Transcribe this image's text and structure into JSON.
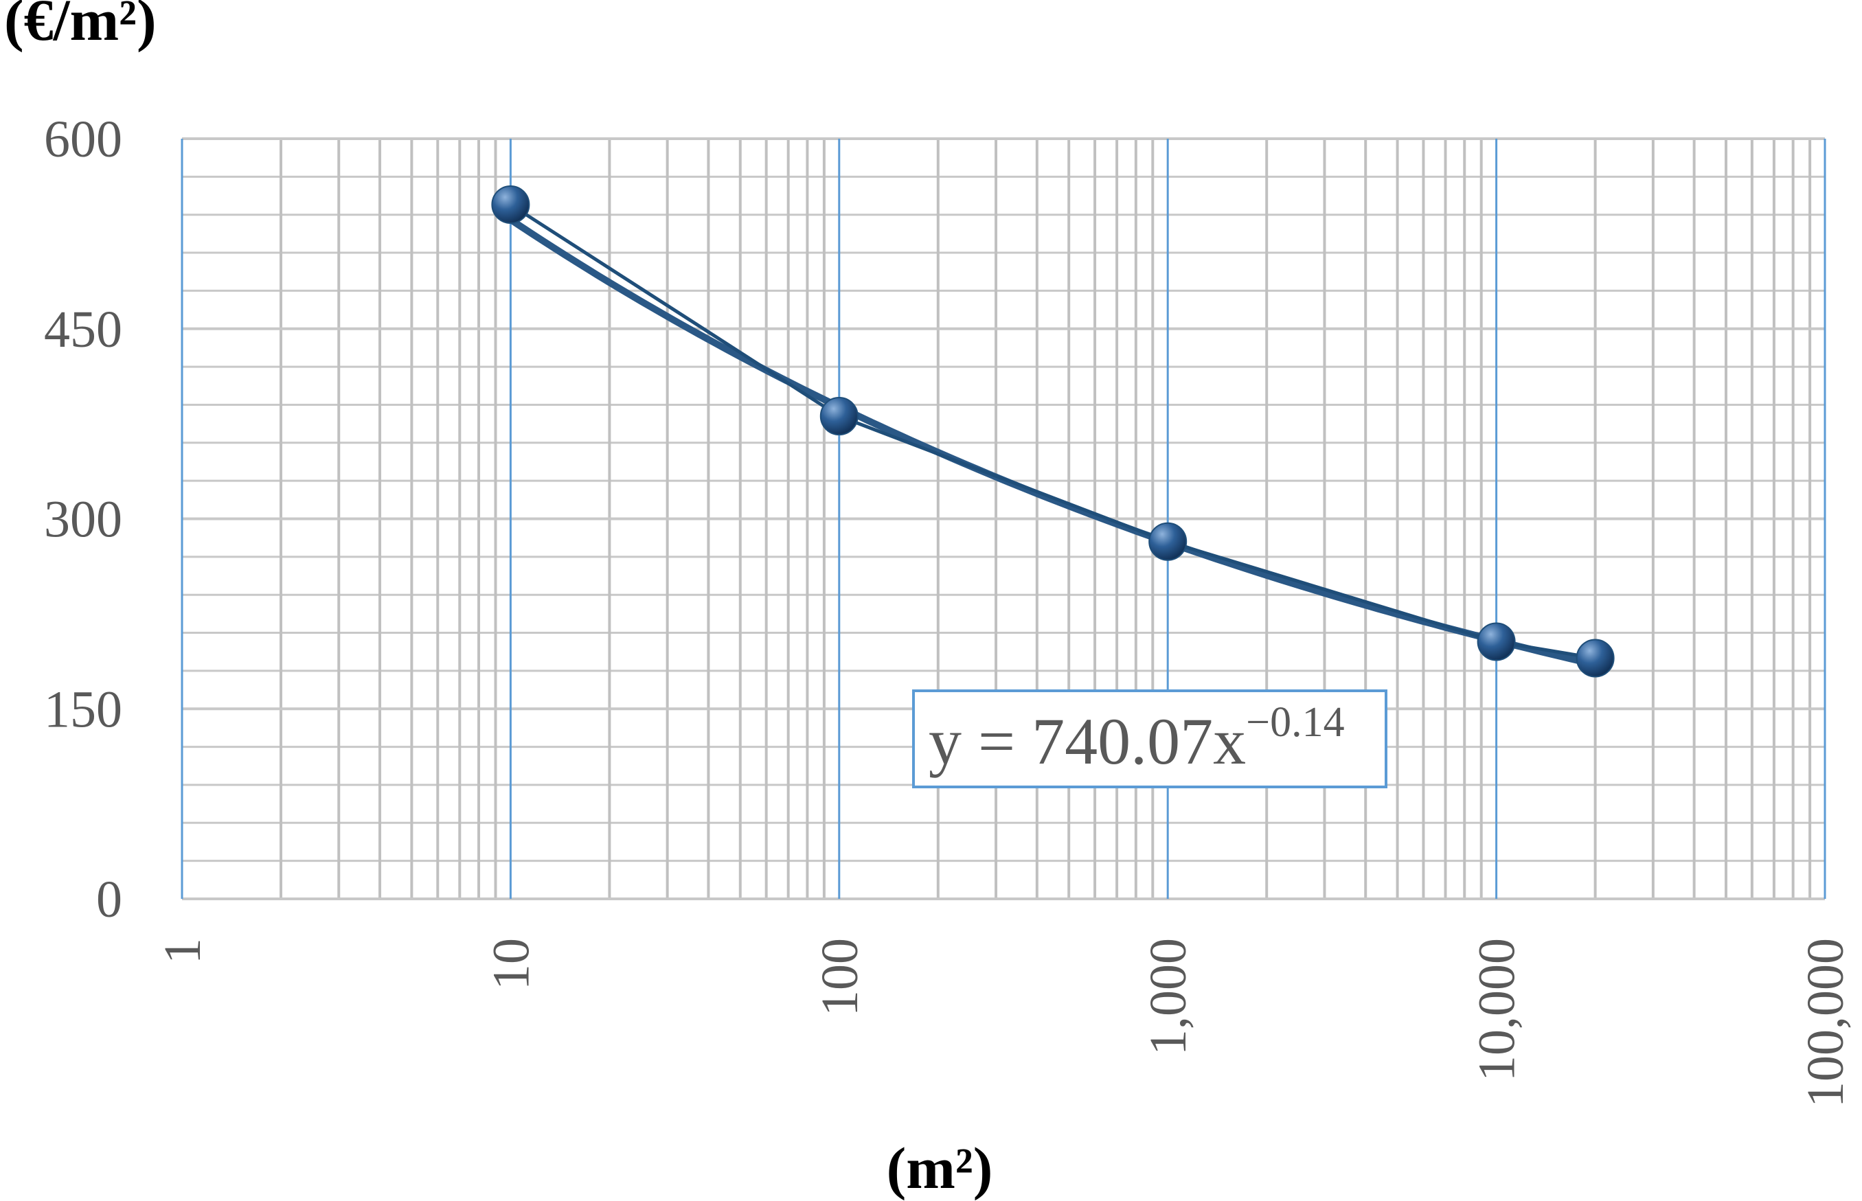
{
  "chart_data": {
    "type": "scatter",
    "y_axis_title": "(€/m²)",
    "x_axis_title": "(m²)",
    "x": [
      10,
      100,
      1000,
      10000,
      20000
    ],
    "series": [
      {
        "color": "#1f4e79",
        "values": [
          548,
          381,
          282,
          203,
          190
        ]
      }
    ],
    "xlim": [
      1,
      100000
    ],
    "xticks": [
      1,
      10,
      100,
      {
        "value": 1000,
        "label": "1,000"
      },
      {
        "value": 10000,
        "label": "10,000"
      },
      {
        "value": 100000,
        "label": "100,000"
      }
    ],
    "x_log_scale": true,
    "ylim": [
      0,
      600
    ],
    "yticks": [
      0,
      150,
      300,
      450,
      600
    ],
    "grid": true,
    "trendline": {
      "type": "power",
      "coefficient": 740.07,
      "exponent": -0.14,
      "color": "#2a5886"
    },
    "annotation": {
      "text": "y = 740.07x",
      "superscript": "−0.14"
    }
  }
}
